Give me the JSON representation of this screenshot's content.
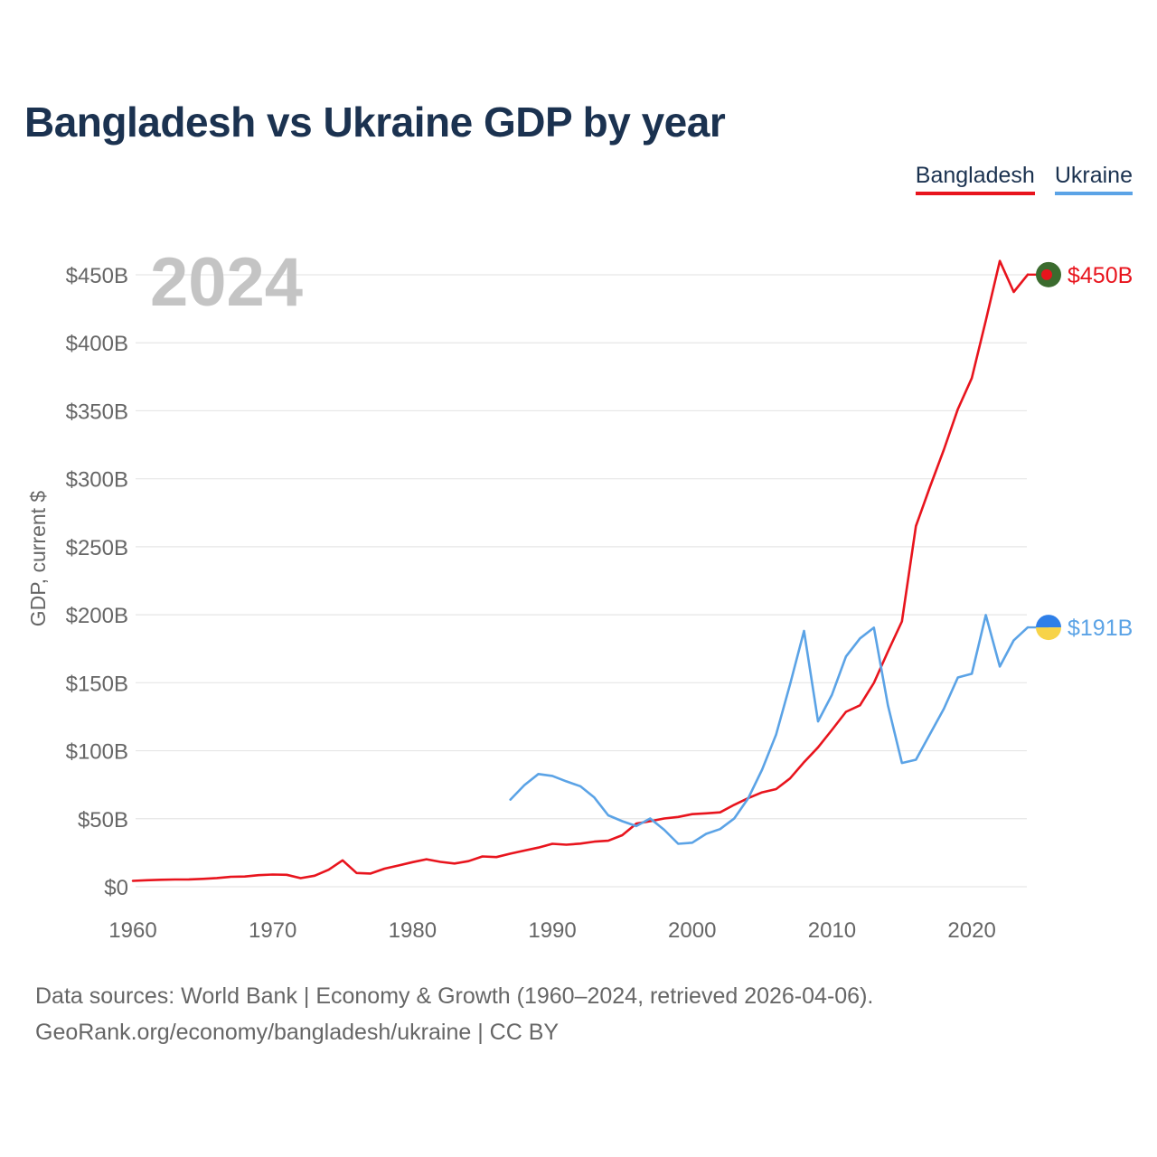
{
  "chart_data": {
    "type": "line",
    "title": "Bangladesh vs Ukraine GDP by year",
    "ylabel": "GDP, current $",
    "xlabel": "",
    "year_watermark": "2024",
    "xlim": [
      1960,
      2024
    ],
    "ylim": [
      -20,
      470
    ],
    "y_ticks": [
      {
        "value": 0,
        "label": "$0"
      },
      {
        "value": 50,
        "label": "$50B"
      },
      {
        "value": 100,
        "label": "$100B"
      },
      {
        "value": 150,
        "label": "$150B"
      },
      {
        "value": 200,
        "label": "$200B"
      },
      {
        "value": 250,
        "label": "$250B"
      },
      {
        "value": 300,
        "label": "$300B"
      },
      {
        "value": 350,
        "label": "$350B"
      },
      {
        "value": 400,
        "label": "$400B"
      },
      {
        "value": 450,
        "label": "$450B"
      }
    ],
    "x_ticks": [
      {
        "value": 1960,
        "label": "1960"
      },
      {
        "value": 1970,
        "label": "1970"
      },
      {
        "value": 1980,
        "label": "1980"
      },
      {
        "value": 1990,
        "label": "1990"
      },
      {
        "value": 2000,
        "label": "2000"
      },
      {
        "value": 2010,
        "label": "2010"
      },
      {
        "value": 2020,
        "label": "2020"
      }
    ],
    "series": [
      {
        "name": "Bangladesh",
        "color": "#e8141d",
        "end_label": "$450B",
        "flag": "bangladesh-flag",
        "x": [
          1960,
          1961,
          1962,
          1963,
          1964,
          1965,
          1966,
          1967,
          1968,
          1969,
          1970,
          1971,
          1972,
          1973,
          1974,
          1975,
          1976,
          1977,
          1978,
          1979,
          1980,
          1981,
          1982,
          1983,
          1984,
          1985,
          1986,
          1987,
          1988,
          1989,
          1990,
          1991,
          1992,
          1993,
          1994,
          1995,
          1996,
          1997,
          1998,
          1999,
          2000,
          2001,
          2002,
          2003,
          2004,
          2005,
          2006,
          2007,
          2008,
          2009,
          2010,
          2011,
          2012,
          2013,
          2014,
          2015,
          2016,
          2017,
          2018,
          2019,
          2020,
          2021,
          2022,
          2023,
          2024
        ],
        "values": [
          4.3,
          4.8,
          5.1,
          5.3,
          5.4,
          5.8,
          6.4,
          7.3,
          7.5,
          8.5,
          9.0,
          8.8,
          6.3,
          8.1,
          12.5,
          19.4,
          10.1,
          9.7,
          13.3,
          15.6,
          18.1,
          20.2,
          18.3,
          17.1,
          18.8,
          22.3,
          21.8,
          24.3,
          26.6,
          28.8,
          31.6,
          30.9,
          31.7,
          33.2,
          33.8,
          37.9,
          46.4,
          48.2,
          50.2,
          51.3,
          53.4,
          54.0,
          54.7,
          60.2,
          65.1,
          69.4,
          71.8,
          79.6,
          91.6,
          102.5,
          115.3,
          128.6,
          133.4,
          149.9,
          172.9,
          195.1,
          265.2,
          293.8,
          321.4,
          351.2,
          374.0,
          416.3,
          460.2,
          437.4,
          450.1
        ]
      },
      {
        "name": "Ukraine",
        "color": "#5ba3e6",
        "end_label": "$191B",
        "flag": "ukraine-flag",
        "x": [
          1987,
          1988,
          1989,
          1990,
          1991,
          1992,
          1993,
          1994,
          1995,
          1996,
          1997,
          1998,
          1999,
          2000,
          2001,
          2002,
          2003,
          2004,
          2005,
          2006,
          2007,
          2008,
          2009,
          2010,
          2011,
          2012,
          2013,
          2014,
          2015,
          2016,
          2017,
          2018,
          2019,
          2020,
          2021,
          2022,
          2023,
          2024
        ],
        "values": [
          64.1,
          74.7,
          82.9,
          81.5,
          77.5,
          73.9,
          65.6,
          52.5,
          48.2,
          44.6,
          50.2,
          41.9,
          31.6,
          32.4,
          38.9,
          42.4,
          50.1,
          64.9,
          86.1,
          111.9,
          148.7,
          188.1,
          121.6,
          141.2,
          169.3,
          182.6,
          190.5,
          133.5,
          91.0,
          93.4,
          112.1,
          130.9,
          153.9,
          156.6,
          199.8,
          161.9,
          181.2,
          190.7
        ]
      }
    ],
    "annotations": []
  },
  "footer": {
    "line1": "Data sources: World Bank | Economy & Growth (1960–2024, retrieved 2026-04-06).",
    "line2": "GeoRank.org/economy/bangladesh/ukraine | CC BY"
  }
}
